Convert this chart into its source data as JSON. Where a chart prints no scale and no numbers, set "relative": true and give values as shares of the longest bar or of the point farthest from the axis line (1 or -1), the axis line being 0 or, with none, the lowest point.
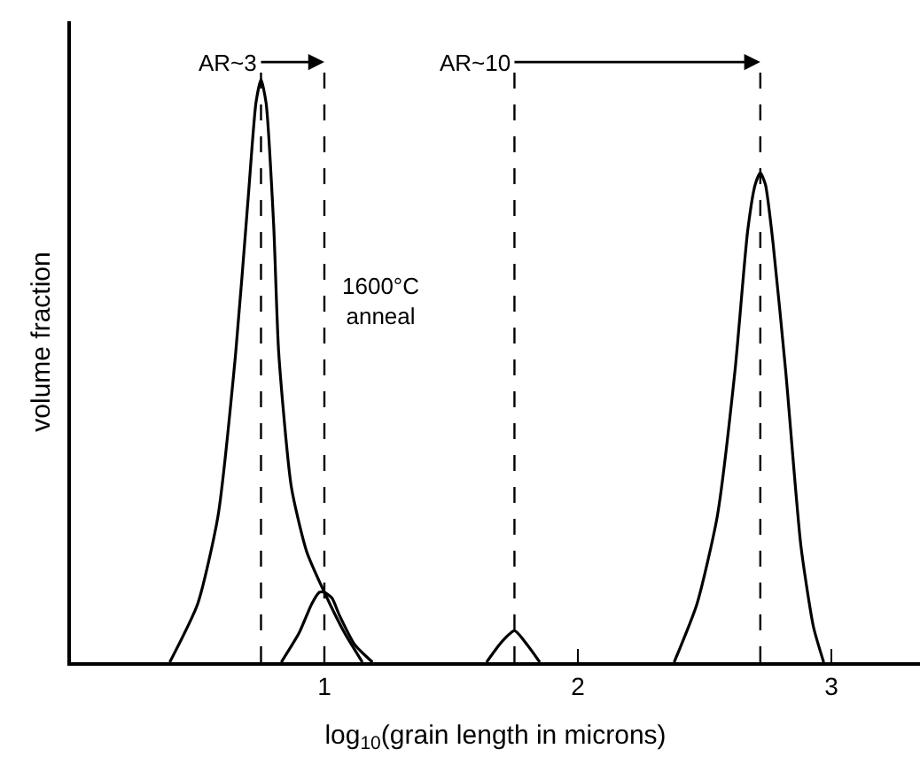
{
  "chart_data": {
    "type": "line",
    "relative": true,
    "xlabel": "log$_{10}$(grain length in microns)",
    "ylabel": "volume fraction",
    "xlim": [
      0,
      3.35
    ],
    "xticks": [
      1,
      2,
      3
    ],
    "tick_labels": "x",
    "marker": "none",
    "line_style": "solid",
    "series": [
      {
        "color": "#000000",
        "x": [
          0.39,
          0.5,
          0.58,
          0.65,
          0.7,
          0.73,
          0.75,
          0.77,
          0.8,
          0.82,
          0.87,
          0.93,
          1.0,
          1.08,
          1.15
        ],
        "values": [
          0,
          0.1,
          0.25,
          0.53,
          0.8,
          0.96,
          1.0,
          0.96,
          0.75,
          0.53,
          0.3,
          0.19,
          0.12,
          0.05,
          0
        ]
      },
      {
        "color": "#000000",
        "x": [
          0.83,
          0.9,
          0.95,
          0.98,
          1.0,
          1.03,
          1.06,
          1.12,
          1.19
        ],
        "values": [
          0,
          0.05,
          0.1,
          0.12,
          0.12,
          0.11,
          0.08,
          0.03,
          0
        ]
      },
      {
        "color": "#000000",
        "x": [
          1.64,
          1.7,
          1.75,
          1.8,
          1.85
        ],
        "values": [
          0,
          0.035,
          0.054,
          0.03,
          0
        ]
      },
      {
        "color": "#000000",
        "x": [
          2.38,
          2.47,
          2.55,
          2.62,
          2.67,
          2.7,
          2.72,
          2.74,
          2.77,
          2.82,
          2.88,
          2.93,
          2.97
        ],
        "values": [
          0,
          0.1,
          0.25,
          0.5,
          0.74,
          0.82,
          0.84,
          0.82,
          0.72,
          0.5,
          0.2,
          0.06,
          0
        ]
      }
    ],
    "ref_lines": [
      {
        "axis": "x",
        "value": 0.75,
        "color": "#000000",
        "line_style": "dashed"
      },
      {
        "axis": "x",
        "value": 1.0,
        "color": "#000000",
        "line_style": "dashed"
      },
      {
        "axis": "x",
        "value": 1.75,
        "color": "#000000",
        "line_style": "dashed"
      },
      {
        "axis": "x",
        "value": 2.72,
        "color": "#000000",
        "line_style": "dashed"
      }
    ],
    "annotations": [
      {
        "text": "AR~3",
        "x": 0.75,
        "y": 1.0
      },
      {
        "text": "AR~10",
        "x": 1.75,
        "y": 1.0
      },
      {
        "text": "1600°C\nanneal",
        "x": 1.0,
        "y": 0.62
      }
    ]
  }
}
